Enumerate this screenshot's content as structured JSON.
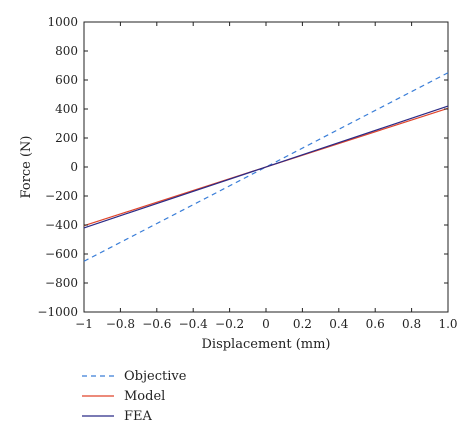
{
  "chart_data": {
    "type": "line",
    "xlabel": "Displacement (mm)",
    "ylabel": "Force (N)",
    "xlim": [
      -1,
      1
    ],
    "ylim": [
      -1000,
      1000
    ],
    "x_ticks": [
      -1,
      -0.8,
      -0.6,
      -0.4,
      -0.2,
      0,
      0.2,
      0.4,
      0.6,
      0.8,
      1
    ],
    "x_tick_labels": [
      "−1",
      "−0.8",
      "−0.6",
      "−0.4",
      "−0.2",
      "0",
      "0.2",
      "0.4",
      "0.6",
      "0.8",
      "1.0"
    ],
    "y_ticks": [
      -1000,
      -800,
      -600,
      -400,
      -200,
      0,
      200,
      400,
      600,
      800,
      1000
    ],
    "y_tick_labels": [
      "−1000",
      "−800",
      "−600",
      "−400",
      "−200",
      "0",
      "200",
      "400",
      "600",
      "800",
      "1000"
    ],
    "grid": false,
    "legend_position": "bottom-left, below plot",
    "series": [
      {
        "name": "Objective",
        "x": [
          -1,
          1
        ],
        "y": [
          -650,
          650
        ],
        "color": "#3a7ed8",
        "style": "dashed"
      },
      {
        "name": "Model",
        "x": [
          -1,
          1
        ],
        "y": [
          -405,
          405
        ],
        "color": "#e0452b",
        "style": "solid"
      },
      {
        "name": "FEA",
        "x": [
          -1,
          1
        ],
        "y": [
          -420,
          420
        ],
        "color": "#2b2a86",
        "style": "solid"
      }
    ]
  }
}
